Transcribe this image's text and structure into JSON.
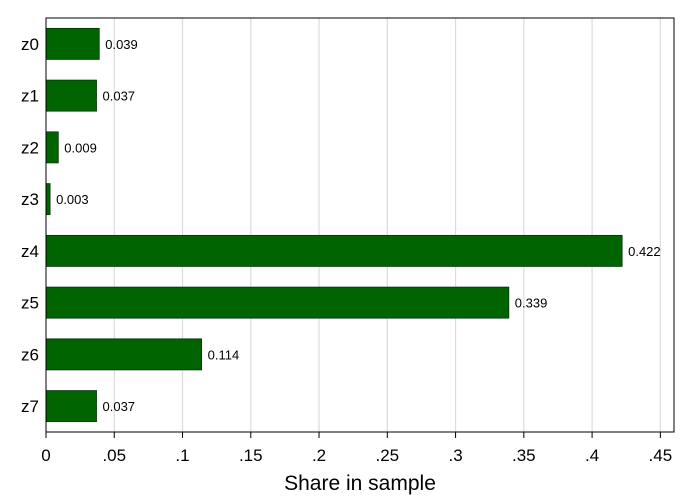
{
  "chart_data": {
    "type": "bar",
    "orientation": "horizontal",
    "categories": [
      "z0",
      "z1",
      "z2",
      "z3",
      "z4",
      "z5",
      "z6",
      "z7"
    ],
    "values": [
      0.039,
      0.037,
      0.009,
      0.003,
      0.422,
      0.339,
      0.114,
      0.037
    ],
    "data_labels": [
      "0.039",
      "0.037",
      "0.009",
      "0.003",
      "0.422",
      "0.339",
      "0.114",
      "0.037"
    ],
    "xlabel": "Share in sample",
    "ylabel": "",
    "xlim": [
      0,
      0.46
    ],
    "xticks": [
      0,
      0.05,
      0.1,
      0.15,
      0.2,
      0.25,
      0.3,
      0.35,
      0.4,
      0.45
    ],
    "xtick_labels": [
      "0",
      ".05",
      ".1",
      ".15",
      ".2",
      ".25",
      ".3",
      ".35",
      ".4",
      ".45"
    ],
    "grid": "vertical",
    "bar_color": "#006400",
    "bar_edge_color": "#00330a",
    "grid_color": "#dcdcdc"
  }
}
